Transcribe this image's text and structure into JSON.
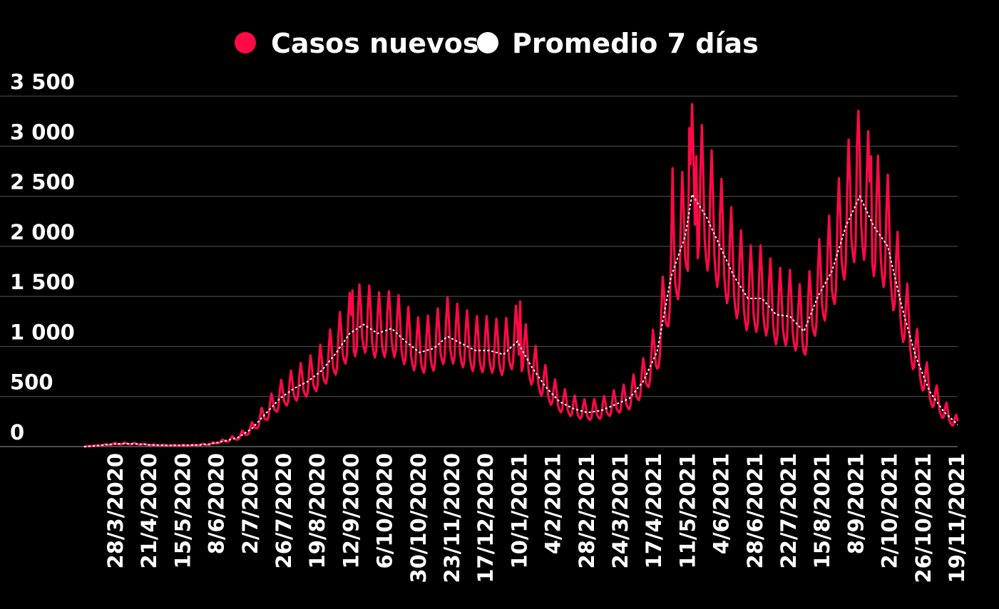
{
  "chart_data": {
    "type": "line",
    "title": "",
    "xlabel": "",
    "ylabel": "",
    "ylim": [
      0,
      3500
    ],
    "y_ticks": [
      0,
      500,
      1000,
      1500,
      2000,
      2500,
      3000,
      3500
    ],
    "y_tick_labels": [
      "0",
      "500",
      "1 000",
      "1 500",
      "2 000",
      "2 500",
      "3 000",
      "3 500"
    ],
    "x_tick_labels": [
      "28/3/2020",
      "21/4/2020",
      "15/5/2020",
      "8/6/2020",
      "2/7/2020",
      "26/7/2020",
      "19/8/2020",
      "12/9/2020",
      "6/10/2020",
      "30/10/2020",
      "23/11/2020",
      "17/12/2020",
      "10/1/2021",
      "4/2/2021",
      "28/2/2021",
      "24/3/2021",
      "17/4/2021",
      "11/5/2021",
      "4/6/2021",
      "28/6/2021",
      "22/7/2021",
      "15/8/2021",
      "8/9/2021",
      "2/10/2021",
      "26/10/2021",
      "19/11/2021"
    ],
    "x_start": "2020-03-04",
    "x_end": "2021-11-19",
    "grid": true,
    "legend_position": "top-center",
    "colors": {
      "background": "#000000",
      "grid": "#555555",
      "text": "#ffffff"
    },
    "series": [
      {
        "name": "Casos nuevos",
        "color": "#ff0a47",
        "points": [
          [
            "2020-03-04",
            0
          ],
          [
            "2020-03-14",
            10
          ],
          [
            "2020-03-24",
            25
          ],
          [
            "2020-04-03",
            30
          ],
          [
            "2020-04-13",
            25
          ],
          [
            "2020-04-23",
            15
          ],
          [
            "2020-05-03",
            12
          ],
          [
            "2020-05-13",
            12
          ],
          [
            "2020-05-23",
            15
          ],
          [
            "2020-06-02",
            25
          ],
          [
            "2020-06-12",
            55
          ],
          [
            "2020-06-22",
            90
          ],
          [
            "2020-07-02",
            180
          ],
          [
            "2020-07-12",
            330
          ],
          [
            "2020-07-22",
            480
          ],
          [
            "2020-08-01",
            580
          ],
          [
            "2020-08-11",
            650
          ],
          [
            "2020-08-21",
            760
          ],
          [
            "2020-08-31",
            930
          ],
          [
            "2020-09-10",
            1130
          ],
          [
            "2020-09-20",
            1220
          ],
          [
            "2020-09-30",
            1130
          ],
          [
            "2020-10-10",
            1180
          ],
          [
            "2020-10-20",
            1050
          ],
          [
            "2020-10-30",
            940
          ],
          [
            "2020-11-09",
            980
          ],
          [
            "2020-11-19",
            1100
          ],
          [
            "2020-11-29",
            1030
          ],
          [
            "2020-12-09",
            960
          ],
          [
            "2020-12-19",
            960
          ],
          [
            "2020-12-29",
            920
          ],
          [
            "2021-01-08",
            1050
          ],
          [
            "2021-01-18",
            800
          ],
          [
            "2021-01-28",
            600
          ],
          [
            "2021-02-07",
            450
          ],
          [
            "2021-02-17",
            380
          ],
          [
            "2021-02-27",
            340
          ],
          [
            "2021-03-09",
            360
          ],
          [
            "2021-03-19",
            420
          ],
          [
            "2021-03-29",
            480
          ],
          [
            "2021-04-08",
            650
          ],
          [
            "2021-04-18",
            950
          ],
          [
            "2021-04-28",
            1700
          ],
          [
            "2021-05-08",
            2100
          ],
          [
            "2021-05-13",
            2520
          ],
          [
            "2021-05-23",
            2300
          ],
          [
            "2021-06-02",
            2000
          ],
          [
            "2021-06-12",
            1700
          ],
          [
            "2021-06-22",
            1480
          ],
          [
            "2021-07-02",
            1480
          ],
          [
            "2021-07-12",
            1320
          ],
          [
            "2021-07-22",
            1300
          ],
          [
            "2021-08-01",
            1150
          ],
          [
            "2021-08-11",
            1500
          ],
          [
            "2021-08-21",
            1750
          ],
          [
            "2021-08-31",
            2200
          ],
          [
            "2021-09-10",
            2500
          ],
          [
            "2021-09-20",
            2200
          ],
          [
            "2021-09-30",
            2000
          ],
          [
            "2021-10-10",
            1400
          ],
          [
            "2021-10-20",
            900
          ],
          [
            "2021-10-30",
            550
          ],
          [
            "2021-11-09",
            350
          ],
          [
            "2021-11-19",
            220
          ]
        ],
        "weekly_amplitude_ratio": 0.28,
        "notable_peaks": [
          [
            "2020-09-12",
            1560
          ],
          [
            "2020-10-08",
            1550
          ],
          [
            "2021-01-10",
            1450
          ],
          [
            "2021-04-29",
            2780
          ],
          [
            "2021-05-11",
            3180
          ],
          [
            "2021-05-16",
            2900
          ],
          [
            "2021-09-08",
            3000
          ],
          [
            "2021-09-18",
            2900
          ]
        ]
      },
      {
        "name": "Promedio 7 días",
        "color": "#ffffff",
        "points": [
          [
            "2020-03-04",
            0
          ],
          [
            "2020-03-14",
            10
          ],
          [
            "2020-03-24",
            25
          ],
          [
            "2020-04-03",
            30
          ],
          [
            "2020-04-13",
            25
          ],
          [
            "2020-04-23",
            15
          ],
          [
            "2020-05-03",
            12
          ],
          [
            "2020-05-13",
            12
          ],
          [
            "2020-05-23",
            15
          ],
          [
            "2020-06-02",
            25
          ],
          [
            "2020-06-12",
            55
          ],
          [
            "2020-06-22",
            90
          ],
          [
            "2020-07-02",
            180
          ],
          [
            "2020-07-12",
            330
          ],
          [
            "2020-07-22",
            480
          ],
          [
            "2020-08-01",
            580
          ],
          [
            "2020-08-11",
            650
          ],
          [
            "2020-08-21",
            760
          ],
          [
            "2020-08-31",
            930
          ],
          [
            "2020-09-10",
            1130
          ],
          [
            "2020-09-20",
            1220
          ],
          [
            "2020-09-30",
            1130
          ],
          [
            "2020-10-10",
            1180
          ],
          [
            "2020-10-20",
            1050
          ],
          [
            "2020-10-30",
            940
          ],
          [
            "2020-11-09",
            980
          ],
          [
            "2020-11-19",
            1100
          ],
          [
            "2020-11-29",
            1030
          ],
          [
            "2020-12-09",
            960
          ],
          [
            "2020-12-19",
            960
          ],
          [
            "2020-12-29",
            920
          ],
          [
            "2021-01-08",
            1050
          ],
          [
            "2021-01-18",
            800
          ],
          [
            "2021-01-28",
            600
          ],
          [
            "2021-02-07",
            450
          ],
          [
            "2021-02-17",
            380
          ],
          [
            "2021-02-27",
            340
          ],
          [
            "2021-03-09",
            360
          ],
          [
            "2021-03-19",
            420
          ],
          [
            "2021-03-29",
            480
          ],
          [
            "2021-04-08",
            650
          ],
          [
            "2021-04-18",
            950
          ],
          [
            "2021-04-28",
            1700
          ],
          [
            "2021-05-08",
            2100
          ],
          [
            "2021-05-13",
            2520
          ],
          [
            "2021-05-23",
            2300
          ],
          [
            "2021-06-02",
            2000
          ],
          [
            "2021-06-12",
            1700
          ],
          [
            "2021-06-22",
            1480
          ],
          [
            "2021-07-02",
            1480
          ],
          [
            "2021-07-12",
            1320
          ],
          [
            "2021-07-22",
            1300
          ],
          [
            "2021-08-01",
            1150
          ],
          [
            "2021-08-11",
            1500
          ],
          [
            "2021-08-21",
            1750
          ],
          [
            "2021-08-31",
            2200
          ],
          [
            "2021-09-10",
            2500
          ],
          [
            "2021-09-20",
            2200
          ],
          [
            "2021-09-30",
            2000
          ],
          [
            "2021-10-10",
            1400
          ],
          [
            "2021-10-20",
            900
          ],
          [
            "2021-10-30",
            550
          ],
          [
            "2021-11-09",
            350
          ],
          [
            "2021-11-19",
            220
          ]
        ]
      }
    ]
  }
}
